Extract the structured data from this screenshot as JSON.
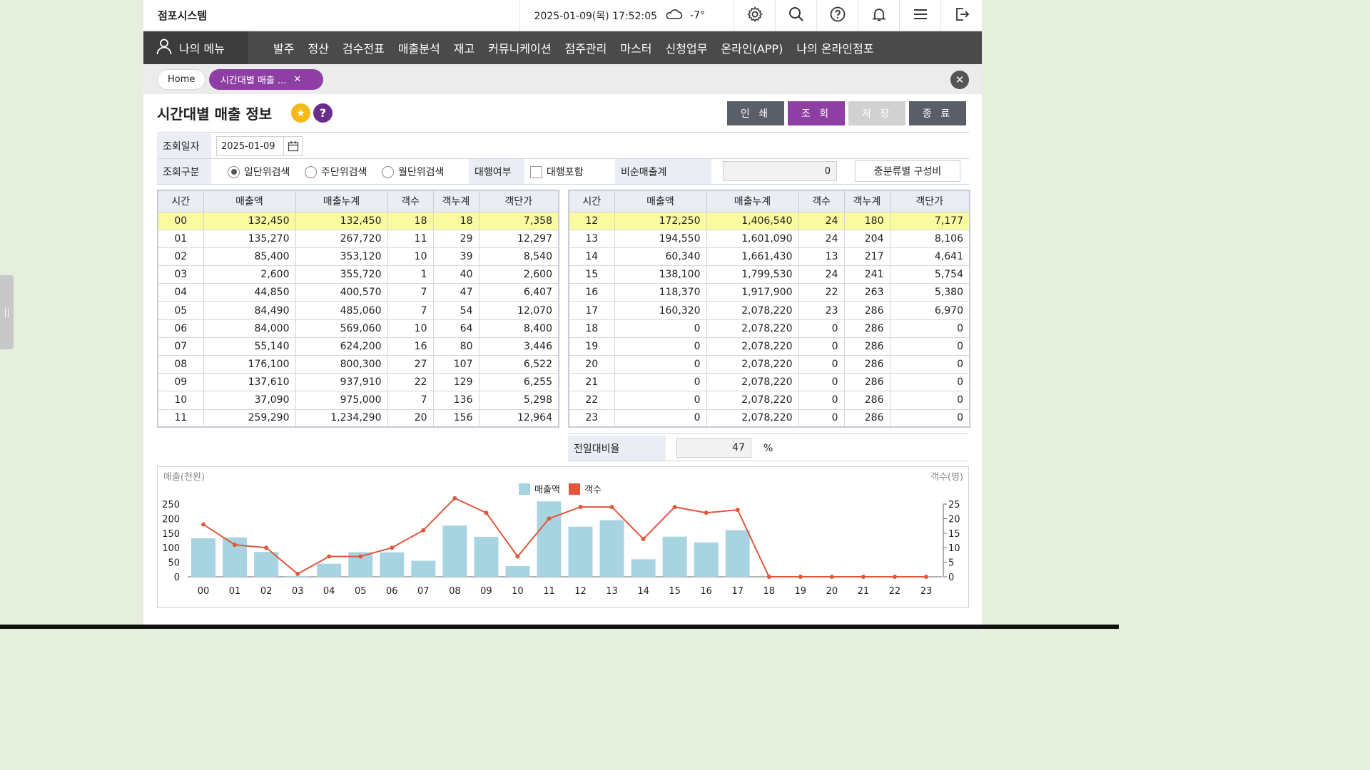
{
  "app": {
    "title": "점포시스템"
  },
  "header": {
    "datetime": "2025-01-09(목) 17:52:05",
    "weather_icon": "cloud-icon",
    "temperature": "-7°"
  },
  "nav": {
    "my_menu": "나의 메뉴",
    "items": [
      "발주",
      "정산",
      "검수전표",
      "매출분석",
      "재고",
      "커뮤니케이션",
      "점주관리",
      "마스터",
      "신청업무",
      "온라인(APP)",
      "나의 온라인점포"
    ]
  },
  "tabs": {
    "home": "Home",
    "active": "시간대별 매출 ..."
  },
  "page": {
    "title": "시간대별 매출 정보"
  },
  "buttons": {
    "print": "인 쇄",
    "query": "조 회",
    "save": "저 장",
    "close": "종 료"
  },
  "colors": {
    "purple": "#8e3fa4",
    "dark_btn": "#5a5e69",
    "disabled_btn": "#d1d1d1",
    "bar": "#a8d4e2",
    "line": "#e0573c",
    "highlight": "#fafaa0"
  },
  "search": {
    "date_label": "조회일자",
    "date_value": "2025-01-09",
    "type_label": "조회구분",
    "radio_day": "일단위검색",
    "radio_week": "주단위검색",
    "radio_month": "월단위검색",
    "proxy_label": "대행여부",
    "proxy_checkbox": "대행포함",
    "nonnet_label": "비순매출계",
    "nonnet_value": "0",
    "ratio_button": "중분류별 구성비"
  },
  "table": {
    "headers": [
      "시간",
      "매출액",
      "매출누계",
      "객수",
      "객누계",
      "객단가"
    ],
    "left_rows": [
      [
        "00",
        "132,450",
        "132,450",
        "18",
        "18",
        "7,358"
      ],
      [
        "01",
        "135,270",
        "267,720",
        "11",
        "29",
        "12,297"
      ],
      [
        "02",
        "85,400",
        "353,120",
        "10",
        "39",
        "8,540"
      ],
      [
        "03",
        "2,600",
        "355,720",
        "1",
        "40",
        "2,600"
      ],
      [
        "04",
        "44,850",
        "400,570",
        "7",
        "47",
        "6,407"
      ],
      [
        "05",
        "84,490",
        "485,060",
        "7",
        "54",
        "12,070"
      ],
      [
        "06",
        "84,000",
        "569,060",
        "10",
        "64",
        "8,400"
      ],
      [
        "07",
        "55,140",
        "624,200",
        "16",
        "80",
        "3,446"
      ],
      [
        "08",
        "176,100",
        "800,300",
        "27",
        "107",
        "6,522"
      ],
      [
        "09",
        "137,610",
        "937,910",
        "22",
        "129",
        "6,255"
      ],
      [
        "10",
        "37,090",
        "975,000",
        "7",
        "136",
        "5,298"
      ],
      [
        "11",
        "259,290",
        "1,234,290",
        "20",
        "156",
        "12,964"
      ]
    ],
    "right_rows": [
      [
        "12",
        "172,250",
        "1,406,540",
        "24",
        "180",
        "7,177"
      ],
      [
        "13",
        "194,550",
        "1,601,090",
        "24",
        "204",
        "8,106"
      ],
      [
        "14",
        "60,340",
        "1,661,430",
        "13",
        "217",
        "4,641"
      ],
      [
        "15",
        "138,100",
        "1,799,530",
        "24",
        "241",
        "5,754"
      ],
      [
        "16",
        "118,370",
        "1,917,900",
        "22",
        "263",
        "5,380"
      ],
      [
        "17",
        "160,320",
        "2,078,220",
        "23",
        "286",
        "6,970"
      ],
      [
        "18",
        "0",
        "2,078,220",
        "0",
        "286",
        "0"
      ],
      [
        "19",
        "0",
        "2,078,220",
        "0",
        "286",
        "0"
      ],
      [
        "20",
        "0",
        "2,078,220",
        "0",
        "286",
        "0"
      ],
      [
        "21",
        "0",
        "2,078,220",
        "0",
        "286",
        "0"
      ],
      [
        "22",
        "0",
        "2,078,220",
        "0",
        "286",
        "0"
      ],
      [
        "23",
        "0",
        "2,078,220",
        "0",
        "286",
        "0"
      ]
    ]
  },
  "prev_day": {
    "label": "전일대비율",
    "value": "47",
    "unit": "%"
  },
  "chart_data": {
    "type": "bar",
    "categories": [
      "00",
      "01",
      "02",
      "03",
      "04",
      "05",
      "06",
      "07",
      "08",
      "09",
      "10",
      "11",
      "12",
      "13",
      "14",
      "15",
      "16",
      "17",
      "18",
      "19",
      "20",
      "21",
      "22",
      "23"
    ],
    "series": [
      {
        "name": "매출액",
        "kind": "bar",
        "axis": "left",
        "values": [
          132.45,
          135.27,
          85.4,
          2.6,
          44.85,
          84.49,
          84.0,
          55.14,
          176.1,
          137.61,
          37.09,
          259.29,
          172.25,
          194.55,
          60.34,
          138.1,
          118.37,
          160.32,
          0,
          0,
          0,
          0,
          0,
          0
        ]
      },
      {
        "name": "객수",
        "kind": "line",
        "axis": "right",
        "values": [
          18,
          11,
          10,
          1,
          7,
          7,
          10,
          16,
          27,
          22,
          7,
          20,
          24,
          24,
          13,
          24,
          22,
          23,
          0,
          0,
          0,
          0,
          0,
          0
        ]
      }
    ],
    "ylabel_left": "매출(천원)",
    "ylabel_right": "객수(명)",
    "ylim_left": [
      0,
      250
    ],
    "yticks_left": [
      0,
      50,
      100,
      150,
      200,
      250
    ],
    "ylim_right": [
      0,
      25
    ],
    "yticks_right": [
      0,
      5,
      10,
      15,
      20,
      25
    ],
    "legend": "top-center",
    "grid": false
  }
}
